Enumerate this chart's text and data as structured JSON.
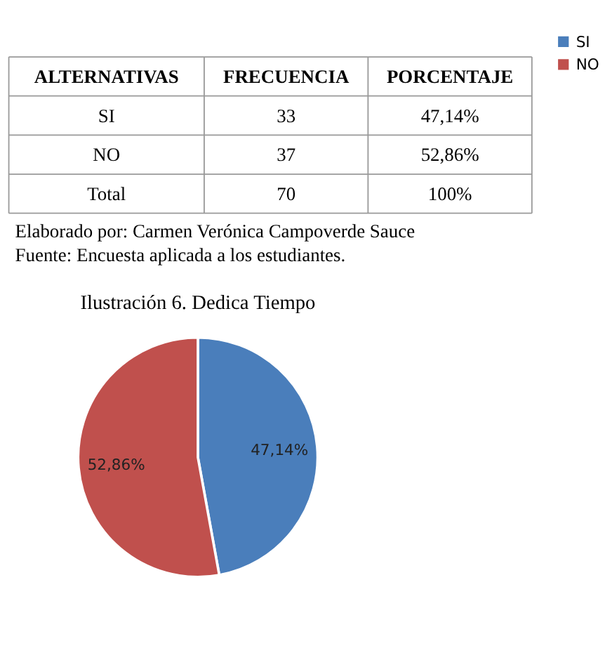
{
  "chart_data": {
    "type": "pie",
    "title": "Ilustración 6. Dedica Tiempo",
    "categories": [
      "SI",
      "NO"
    ],
    "values": [
      47.14,
      52.86
    ],
    "colors": [
      "#4a7ebb",
      "#c0504d"
    ],
    "value_labels": [
      "47,14%",
      "52,86%"
    ],
    "legend": "right",
    "annotations": [
      "ALTERNATIVAS",
      "FRECUENCIA",
      "PORCENTAJE",
      "SI",
      "33",
      "47,14%",
      "NO",
      "37",
      "52,86%",
      "Total",
      "70",
      "100%",
      "Elaborado por: Carmen Verónica Campoverde Sauce",
      "Fuente: Encuesta aplicada a los estudiantes."
    ]
  }
}
